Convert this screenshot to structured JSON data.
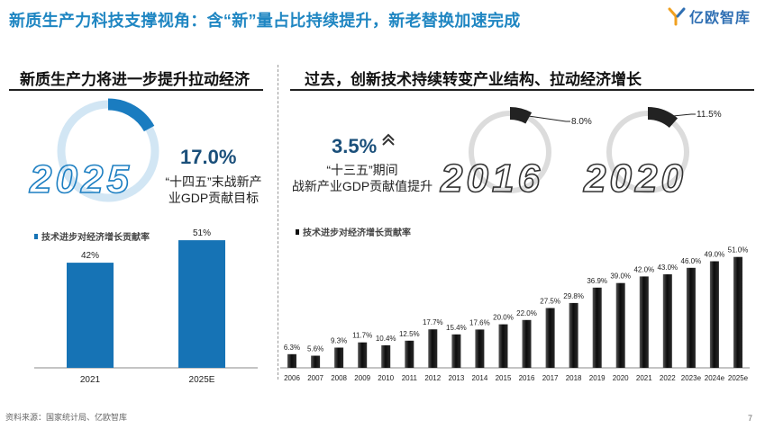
{
  "header": {
    "title": "新质生产力科技支撑视角：含“新”量占比持续提升，新老替换加速完成",
    "logo_text": "亿欧智库"
  },
  "left": {
    "heading": "新质生产力将进一步提升拉动经济",
    "year": "2025",
    "pct": "17.0%",
    "note_line1": "“十四五”末战新产",
    "note_line2": "业GDP贡献目标",
    "ring_fraction": 0.17
  },
  "right": {
    "heading": "过去，创新技术持续转变产业结构、拉动经济增长",
    "pct": "3.5%",
    "note_line1": "“十三五”期间",
    "note_line2": "战新产业GDP贡献值提升",
    "gauges": [
      {
        "year": "2016",
        "label": "8.0%",
        "fraction": 0.08
      },
      {
        "year": "2020",
        "label": "11.5%",
        "fraction": 0.115
      }
    ]
  },
  "colors": {
    "title": "#1f86c2",
    "blue_bar": "#1673b5",
    "dark_bar": "#111111",
    "ring_light": "#d2e6f4",
    "ring_blue": "#1a7cc0",
    "ring_grey": "#dcdcdc"
  },
  "chart_data": [
    {
      "type": "bar",
      "legend": "技术进步对经济增长贡献率",
      "categories": [
        "2021",
        "2025E"
      ],
      "values": [
        42,
        51
      ],
      "data_labels": [
        "42%",
        "51%"
      ],
      "ylim": [
        0,
        60
      ]
    },
    {
      "type": "bar",
      "legend": "技术进步对经济增长贡献率",
      "categories": [
        "2006",
        "2007",
        "2008",
        "2009",
        "2010",
        "2011",
        "2012",
        "2013",
        "2014",
        "2015",
        "2016",
        "2017",
        "2018",
        "2019",
        "2020",
        "2021",
        "2022",
        "2023e",
        "2024e",
        "2025e"
      ],
      "values": [
        6.3,
        5.6,
        9.3,
        11.7,
        10.4,
        12.5,
        17.7,
        15.4,
        17.6,
        20.0,
        22.0,
        27.5,
        29.8,
        36.9,
        39.0,
        42.0,
        43.0,
        46.0,
        49.0,
        51.0
      ],
      "data_labels": [
        "6.3%",
        "5.6%",
        "9.3%",
        "11.7%",
        "10.4%",
        "12.5%",
        "17.7%",
        "15.4%",
        "17.6%",
        "20.0%",
        "22.0%",
        "27.5%",
        "29.8%",
        "36.9%",
        "39.0%",
        "42.0%",
        "43.0%",
        "46.0%",
        "49.0%",
        "51.0%"
      ],
      "ylim": [
        0,
        55
      ]
    }
  ],
  "footer": {
    "source": "资料来源：国家统计局、亿欧智库",
    "page": "7"
  }
}
